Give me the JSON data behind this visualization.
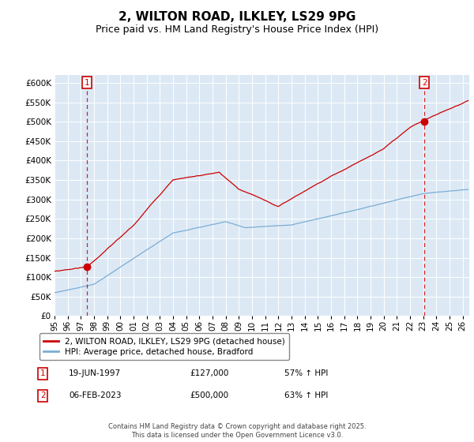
{
  "title": "2, WILTON ROAD, ILKLEY, LS29 9PG",
  "subtitle": "Price paid vs. HM Land Registry's House Price Index (HPI)",
  "ylim": [
    0,
    620000
  ],
  "yticks": [
    0,
    50000,
    100000,
    150000,
    200000,
    250000,
    300000,
    350000,
    400000,
    450000,
    500000,
    550000,
    600000
  ],
  "xlim_start": 1995.0,
  "xlim_end": 2026.5,
  "sale1_date": 1997.47,
  "sale1_price": 127000,
  "sale2_date": 2023.09,
  "sale2_price": 500000,
  "red_line_color": "#cc0000",
  "blue_line_color": "#7aadd4",
  "marker_color": "#cc0000",
  "dashed_line_color": "#cc0000",
  "plot_bg_color": "#dce9f5",
  "legend_label_red": "2, WILTON ROAD, ILKLEY, LS29 9PG (detached house)",
  "legend_label_blue": "HPI: Average price, detached house, Bradford",
  "annotation1_date": "19-JUN-1997",
  "annotation1_price": "£127,000",
  "annotation1_pct": "57% ↑ HPI",
  "annotation2_date": "06-FEB-2023",
  "annotation2_price": "£500,000",
  "annotation2_pct": "63% ↑ HPI",
  "footer": "Contains HM Land Registry data © Crown copyright and database right 2025.\nThis data is licensed under the Open Government Licence v3.0.",
  "title_fontsize": 11,
  "subtitle_fontsize": 9,
  "tick_fontsize": 7.5
}
